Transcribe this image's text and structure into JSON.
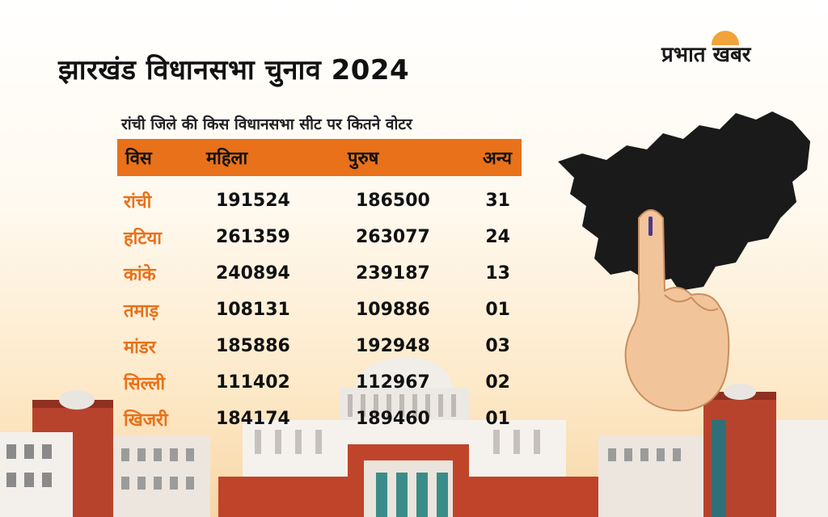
{
  "headline": "झारखंड विधानसभा चुनाव 2024",
  "logo": "प्रभात खबर",
  "subtitle": "रांची जिले की किस विधानसभा सीट पर कितने वोटर",
  "table": {
    "headers": [
      "विस",
      "महिला",
      "पुरुष",
      "अन्य"
    ],
    "rows": [
      [
        "रांची",
        "191524",
        "186500",
        "31"
      ],
      [
        "हटिया",
        "261359",
        "263077",
        "24"
      ],
      [
        "कांके",
        "240894",
        "239187",
        "13"
      ],
      [
        "तमाड़",
        "108131",
        "109886",
        "01"
      ],
      [
        "मांडर",
        "185886",
        "192948",
        "03"
      ],
      [
        "सिल्ली",
        "111402",
        "112967",
        "02"
      ],
      [
        "खिजरी",
        "184174",
        "189460",
        "01"
      ]
    ]
  },
  "colors": {
    "accent": "#e8711a",
    "map": "#1a1a1a",
    "building": "#c0442a"
  },
  "icons": [
    "jharkhand-map-icon",
    "voter-finger-icon",
    "assembly-building-illustration"
  ]
}
